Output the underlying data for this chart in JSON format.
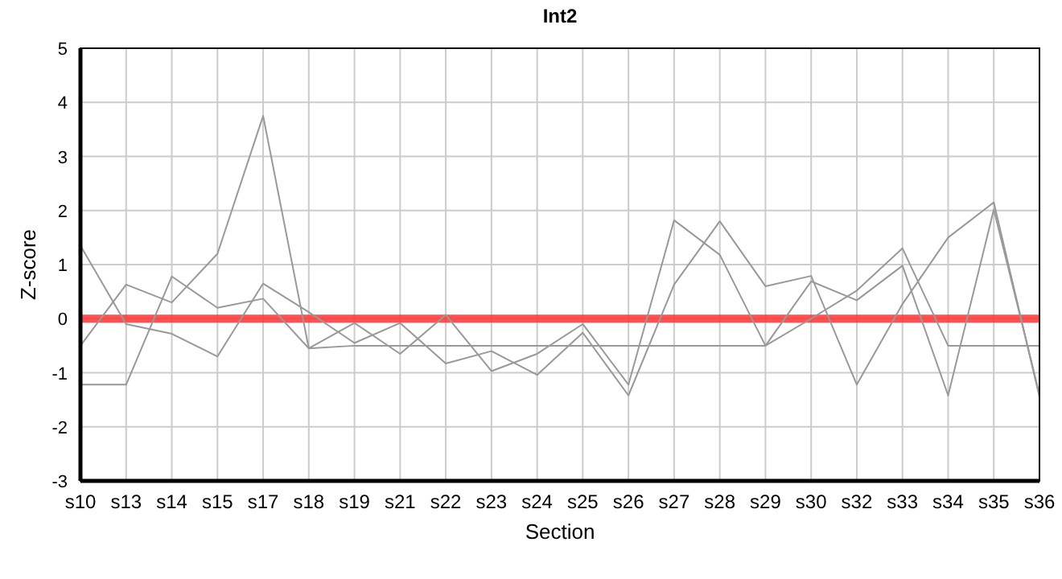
{
  "chart_data": {
    "type": "line",
    "title": "Int2",
    "xlabel": "Section",
    "ylabel": "Z-score",
    "categories": [
      "s10",
      "s13",
      "s14",
      "s15",
      "s17",
      "s18",
      "s19",
      "s21",
      "s22",
      "s23",
      "s24",
      "s25",
      "s26",
      "s27",
      "s28",
      "s29",
      "s30",
      "s32",
      "s33",
      "s34",
      "s35",
      "s36"
    ],
    "series": [
      {
        "color": "#999999",
        "values": [
          -0.5,
          0.63,
          0.3,
          1.2,
          3.75,
          -0.55,
          -0.08,
          -0.65,
          0.07,
          -0.97,
          -0.65,
          -0.1,
          -1.22,
          1.82,
          1.18,
          -0.5,
          0.69,
          0.34,
          0.98,
          -1.42,
          2.02,
          -1.4
        ]
      },
      {
        "color": "#999999",
        "values": [
          1.35,
          -0.1,
          -0.28,
          -0.7,
          0.65,
          0.12,
          -0.45,
          -0.08,
          -0.83,
          -0.6,
          -1.04,
          -0.26,
          -1.42,
          0.63,
          1.8,
          0.6,
          0.79,
          -1.22,
          0.27,
          1.5,
          2.15,
          -1.45
        ]
      },
      {
        "color": "#999999",
        "values": [
          -1.22,
          -1.22,
          0.78,
          0.2,
          0.37,
          -0.55,
          -0.5,
          -0.5,
          -0.5,
          -0.5,
          -0.5,
          -0.5,
          -0.5,
          -0.5,
          -0.5,
          -0.5,
          0,
          0.52,
          1.3,
          -0.5,
          -0.5,
          -0.5
        ]
      }
    ],
    "ref_lines": [
      {
        "axis": "y",
        "value": 0,
        "color": "#ff3333"
      }
    ],
    "ylim": [
      -3,
      5
    ],
    "yticks": [
      -3,
      -2,
      -1,
      0,
      1,
      2,
      3,
      4,
      5
    ],
    "grid": true,
    "marker": "none",
    "line_style": "solid"
  }
}
